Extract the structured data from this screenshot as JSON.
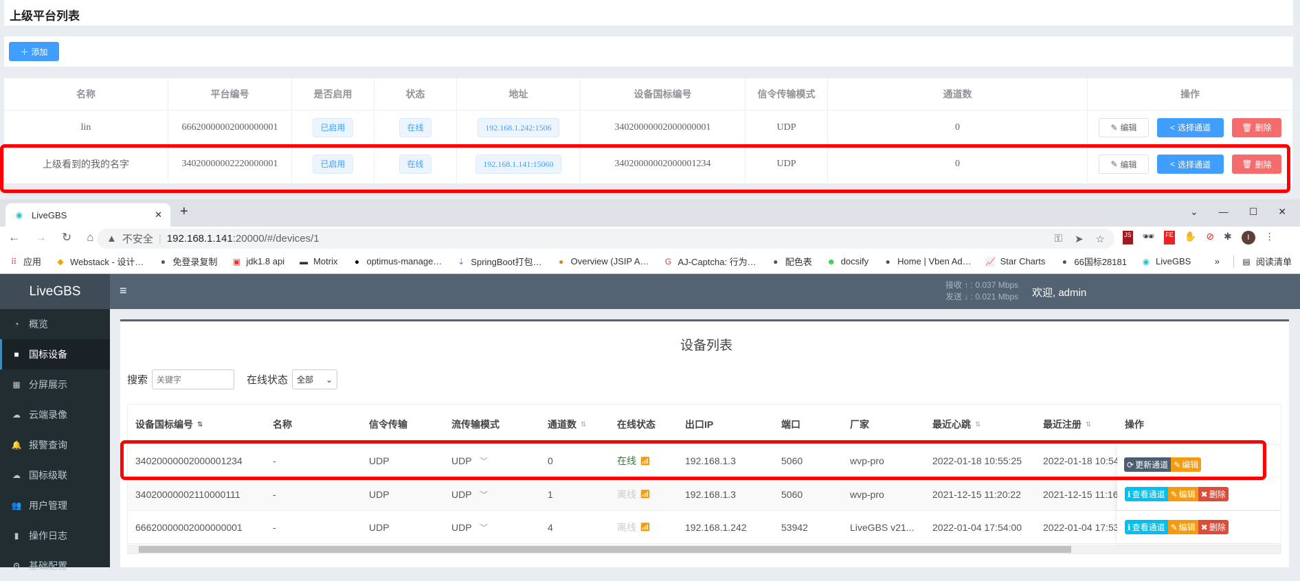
{
  "platform_page": {
    "title": "上级平台列表",
    "add_label": "添加",
    "columns": [
      "名称",
      "平台编号",
      "是否启用",
      "状态",
      "地址",
      "设备国标编号",
      "信令传输模式",
      "通道数",
      "操作"
    ],
    "rows": [
      {
        "name": "lin",
        "platform_id": "66620000002000000001",
        "enabled": "已启用",
        "status": "在线",
        "address": "192.168.1.242:1506",
        "device_id": "34020000002000000001",
        "transport": "UDP",
        "channels": "0"
      },
      {
        "name": "上级看到的我的名字",
        "platform_id": "34020000002220000001",
        "enabled": "已启用",
        "status": "在线",
        "address": "192.168.1.141:15060",
        "device_id": "34020000002000001234",
        "transport": "UDP",
        "channels": "0"
      }
    ],
    "actions": {
      "edit": "编辑",
      "select_channel": "选择通道",
      "delete": "删除"
    }
  },
  "browser": {
    "tab_title": "LiveGBS",
    "insecure_label": "不安全",
    "url_host": "192.168.1.141",
    "url_rest": ":20000/#/devices/1",
    "bookmarks": [
      "应用",
      "Webstack - 设计…",
      "免登录复制",
      "jdk1.8 api",
      "Motrix",
      "optimus-manage…",
      "SpringBoot打包…",
      "Overview (JSIP A…",
      "AJ-Captcha: 行为…",
      "配色表",
      "docsify",
      "Home | Vben Ad…",
      "Star Charts",
      "66国标28181",
      "LiveGBS"
    ],
    "reading_list": "阅读清单"
  },
  "app": {
    "logo": "LiveGBS",
    "rx_label": "接收 ↑ : 0.037 Mbps",
    "tx_label": "发送 ↓ : 0.021 Mbps",
    "welcome": "欢迎, admin",
    "sidebar": [
      {
        "label": "概览",
        "icon": "dashboard-icon"
      },
      {
        "label": "国标设备",
        "icon": "video-camera-icon",
        "active": true
      },
      {
        "label": "分屏展示",
        "icon": "grid-icon"
      },
      {
        "label": "云端录像",
        "icon": "cloud-icon"
      },
      {
        "label": "报警查询",
        "icon": "bell-icon"
      },
      {
        "label": "国标级联",
        "icon": "cloud-upload-icon"
      },
      {
        "label": "用户管理",
        "icon": "users-icon"
      },
      {
        "label": "操作日志",
        "icon": "file-icon"
      },
      {
        "label": "基础配置",
        "icon": "gears-icon"
      }
    ],
    "page_title": "设备列表",
    "search_label": "搜索",
    "search_placeholder": "关键字",
    "status_filter_label": "在线状态",
    "status_filter_value": "全部",
    "columns": [
      "设备国标编号",
      "名称",
      "信令传输",
      "流传输模式",
      "通道数",
      "在线状态",
      "出口IP",
      "端口",
      "厂家",
      "最近心跳",
      "最近注册",
      "操作"
    ],
    "rows": [
      {
        "id": "34020000002000001234",
        "name": "-",
        "signal": "UDP",
        "stream": "UDP",
        "channels": "0",
        "online": "在线",
        "is_online": true,
        "ip": "192.168.1.3",
        "port": "5060",
        "vendor": "wvp-pro",
        "heartbeat": "2022-01-18 10:55:25",
        "register": "2022-01-18 10:54",
        "actions": [
          "更新通道",
          "编辑"
        ]
      },
      {
        "id": "34020000002110000111",
        "name": "-",
        "signal": "UDP",
        "stream": "UDP",
        "channels": "1",
        "online": "离线",
        "is_online": false,
        "ip": "192.168.1.3",
        "port": "5060",
        "vendor": "wvp-pro",
        "heartbeat": "2021-12-15 11:20:22",
        "register": "2021-12-15 11:16",
        "actions": [
          "查看通道",
          "编辑",
          "删除"
        ]
      },
      {
        "id": "66620000002000000001",
        "name": "-",
        "signal": "UDP",
        "stream": "UDP",
        "channels": "4",
        "online": "离线",
        "is_online": false,
        "ip": "192.168.1.242",
        "port": "53942",
        "vendor": "LiveGBS v21...",
        "heartbeat": "2022-01-04 17:54:00",
        "register": "2022-01-04 17:53",
        "actions": [
          "查看通道",
          "编辑",
          "删除"
        ]
      }
    ]
  }
}
